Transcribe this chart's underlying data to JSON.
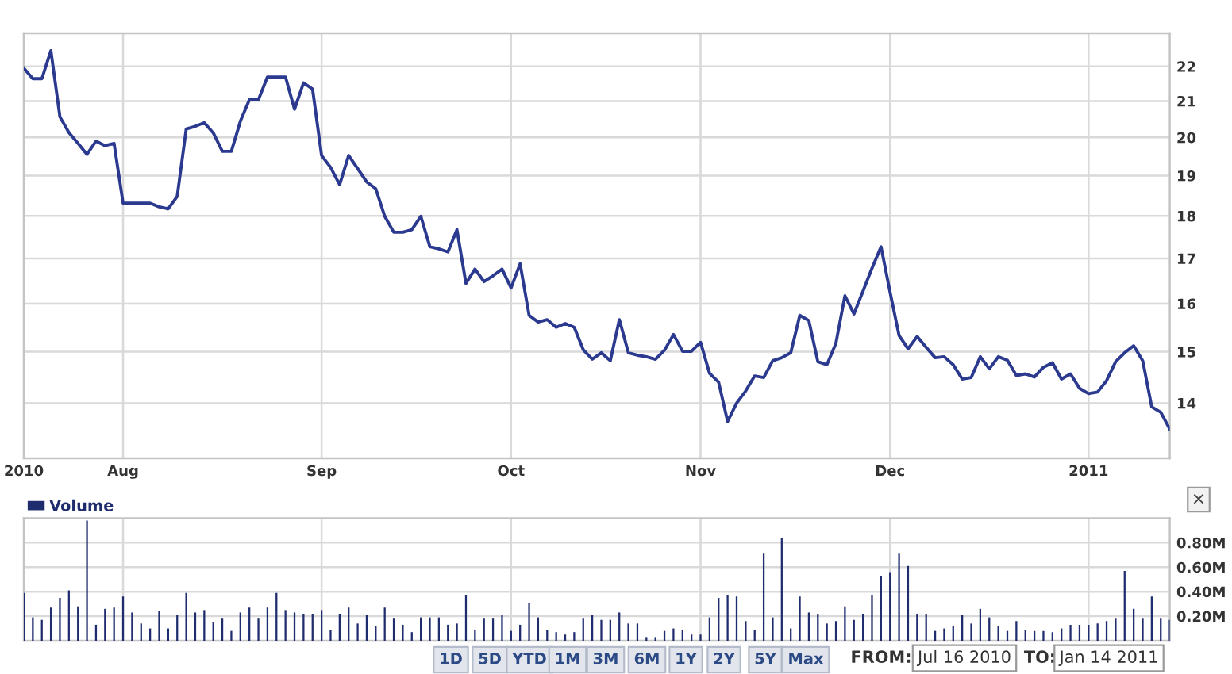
{
  "chart_data": [
    {
      "type": "line",
      "log": true,
      "grid": true,
      "line_style": "solid",
      "categories": [
        "2010",
        null,
        null,
        null,
        null,
        null,
        null,
        null,
        null,
        null,
        null,
        "Aug",
        null,
        null,
        null,
        null,
        null,
        null,
        null,
        null,
        null,
        null,
        null,
        null,
        null,
        null,
        null,
        null,
        null,
        null,
        null,
        null,
        null,
        "Sep",
        null,
        null,
        null,
        null,
        null,
        null,
        null,
        null,
        null,
        null,
        null,
        null,
        null,
        null,
        null,
        null,
        null,
        null,
        null,
        null,
        "Oct",
        null,
        null,
        null,
        null,
        null,
        null,
        null,
        null,
        null,
        null,
        null,
        null,
        null,
        null,
        null,
        null,
        null,
        null,
        null,
        null,
        "Nov",
        null,
        null,
        null,
        null,
        null,
        null,
        null,
        null,
        null,
        null,
        null,
        null,
        null,
        null,
        null,
        null,
        null,
        null,
        null,
        null,
        "Dec",
        null,
        null,
        null,
        null,
        null,
        null,
        null,
        null,
        null,
        null,
        null,
        null,
        null,
        null,
        null,
        null,
        null,
        null,
        null,
        null,
        null,
        "2011",
        null,
        null,
        null,
        null,
        null,
        null,
        null,
        null,
        null
      ],
      "series": [
        {
          "color": "#2b3a8f",
          "values": [
            21.95,
            21.64,
            21.64,
            22.47,
            20.56,
            20.13,
            19.84,
            19.55,
            19.9,
            19.78,
            19.84,
            18.31,
            18.31,
            18.31,
            18.31,
            18.22,
            18.17,
            18.48,
            20.23,
            20.3,
            20.4,
            20.12,
            19.63,
            19.63,
            20.44,
            21.04,
            21.04,
            21.69,
            21.69,
            21.69,
            20.77,
            21.52,
            21.34,
            19.52,
            19.21,
            18.77,
            19.52,
            19.18,
            18.84,
            18.67,
            17.99,
            17.61,
            17.61,
            17.67,
            17.99,
            17.27,
            17.22,
            17.15,
            17.67,
            16.44,
            16.76,
            16.48,
            16.61,
            16.76,
            16.34,
            16.88,
            15.75,
            15.61,
            15.66,
            15.5,
            15.58,
            15.5,
            15.04,
            14.85,
            14.98,
            14.82,
            15.66,
            14.98,
            14.93,
            14.9,
            14.85,
            15.03,
            15.35,
            15.01,
            15.01,
            15.19,
            14.57,
            14.4,
            13.66,
            14.0,
            14.23,
            14.52,
            14.49,
            14.82,
            14.88,
            14.98,
            15.75,
            15.64,
            14.8,
            14.74,
            15.17,
            16.17,
            15.78,
            16.27,
            16.78,
            17.27,
            16.25,
            15.33,
            15.06,
            15.31,
            15.09,
            14.88,
            14.9,
            14.74,
            14.46,
            14.49,
            14.9,
            14.66,
            14.9,
            14.83,
            14.53,
            14.56,
            14.5,
            14.69,
            14.78,
            14.46,
            14.56,
            14.28,
            14.18,
            14.21,
            14.43,
            14.8,
            14.98,
            15.12,
            14.82,
            13.93,
            13.83,
            13.52
          ]
        }
      ],
      "ylim": [
        13,
        23
      ],
      "yticks": [
        14,
        15,
        16,
        17,
        18,
        19,
        20,
        21,
        22
      ]
    },
    {
      "type": "bar",
      "grid": true,
      "legend": "top left",
      "categories": [
        null,
        null,
        null,
        null,
        null,
        null,
        null,
        null,
        null,
        null,
        null,
        null,
        null,
        null,
        null,
        null,
        null,
        null,
        null,
        null,
        null,
        null,
        null,
        null,
        null,
        null,
        null,
        null,
        null,
        null,
        null,
        null,
        null,
        null,
        null,
        null,
        null,
        null,
        null,
        null,
        null,
        null,
        null,
        null,
        null,
        null,
        null,
        null,
        null,
        null,
        null,
        null,
        null,
        null,
        null,
        null,
        null,
        null,
        null,
        null,
        null,
        null,
        null,
        null,
        null,
        null,
        null,
        null,
        null,
        null,
        null,
        null,
        null,
        null,
        null,
        null,
        null,
        null,
        null,
        null,
        null,
        null,
        null,
        null,
        null,
        null,
        null,
        null,
        null,
        null,
        null,
        null,
        null,
        null,
        null,
        null,
        null,
        null,
        null,
        null,
        null,
        null,
        null,
        null,
        null,
        null,
        null,
        null,
        null,
        null,
        null,
        null,
        null,
        null,
        null,
        null,
        null,
        null,
        null,
        null,
        null,
        null,
        null,
        null,
        null,
        null,
        null,
        null
      ],
      "series": [
        {
          "name": "Volume",
          "color": "#1f2c6e",
          "values": [
            0.39,
            0.19,
            0.17,
            0.27,
            0.35,
            0.41,
            0.28,
            0.98,
            0.13,
            0.26,
            0.27,
            0.36,
            0.23,
            0.14,
            0.1,
            0.24,
            0.1,
            0.21,
            0.39,
            0.23,
            0.25,
            0.15,
            0.18,
            0.08,
            0.23,
            0.27,
            0.18,
            0.27,
            0.39,
            0.25,
            0.23,
            0.22,
            0.22,
            0.25,
            0.09,
            0.22,
            0.27,
            0.14,
            0.21,
            0.12,
            0.27,
            0.18,
            0.13,
            0.07,
            0.19,
            0.19,
            0.19,
            0.13,
            0.14,
            0.37,
            0.09,
            0.18,
            0.18,
            0.21,
            0.08,
            0.13,
            0.31,
            0.19,
            0.09,
            0.07,
            0.05,
            0.07,
            0.18,
            0.21,
            0.17,
            0.17,
            0.23,
            0.14,
            0.14,
            0.03,
            0.03,
            0.08,
            0.1,
            0.09,
            0.05,
            0.05,
            0.19,
            0.35,
            0.37,
            0.36,
            0.16,
            0.09,
            0.71,
            0.19,
            0.84,
            0.1,
            0.36,
            0.23,
            0.22,
            0.14,
            0.16,
            0.28,
            0.17,
            0.22,
            0.37,
            0.53,
            0.56,
            0.71,
            0.61,
            0.22,
            0.22,
            0.08,
            0.1,
            0.12,
            0.21,
            0.14,
            0.26,
            0.19,
            0.12,
            0.08,
            0.16,
            0.09,
            0.08,
            0.08,
            0.07,
            0.1,
            0.13,
            0.13,
            0.13,
            0.14,
            0.16,
            0.18,
            0.57,
            0.26,
            0.18,
            0.36,
            0.18,
            0.17
          ]
        }
      ],
      "ylim": [
        0,
        1
      ],
      "yticks": [
        {
          "value": 0.2,
          "label": "0.20M"
        },
        {
          "value": 0.4,
          "label": "0.40M"
        },
        {
          "value": 0.6,
          "label": "0.60M"
        },
        {
          "value": 0.8,
          "label": "0.80M"
        }
      ],
      "annotations": [
        "1D",
        "5D",
        "YTD",
        "1M",
        "3M",
        "6M",
        "1Y",
        "2Y",
        "5Y",
        "Max",
        "FROM:",
        "Jul 16 2010",
        "TO:",
        "Jan 14 2011",
        "×"
      ]
    }
  ]
}
